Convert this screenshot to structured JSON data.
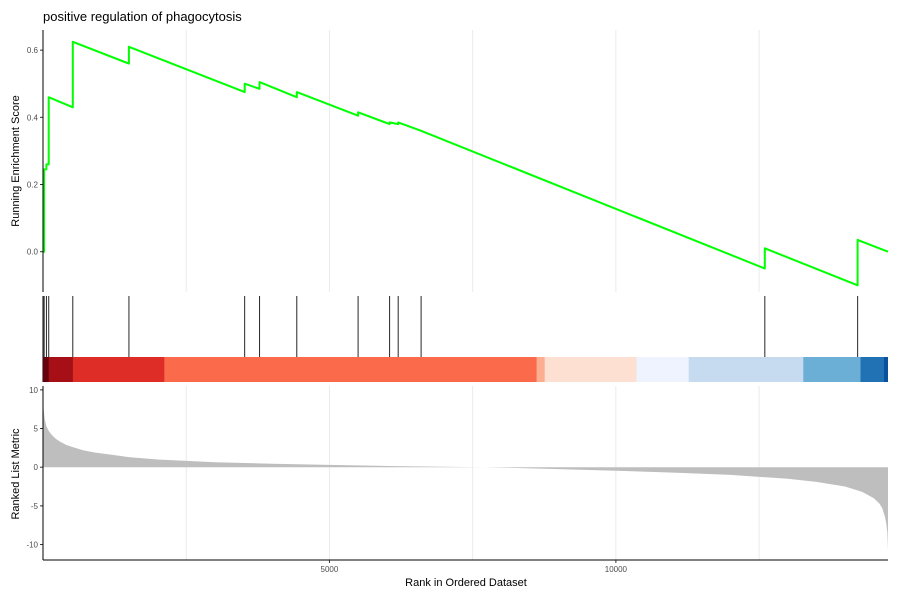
{
  "chart_data": {
    "type": "line",
    "title": "positive regulation of phagocytosis",
    "panels": {
      "running_score": {
        "ylabel": "Running Enrichment Score",
        "ylim": [
          -0.12,
          0.66
        ],
        "yticks": [
          0.0,
          0.2,
          0.4,
          0.6
        ],
        "ytick_labels": [
          "0.0",
          "0.2",
          "0.4",
          "0.6"
        ],
        "color": "#00ff00",
        "series": [
          {
            "x": [
              0,
              20,
              20,
              60,
              60,
              100,
              100,
              520,
              520,
              1500,
              1500,
              3520,
              3520,
              3780,
              3780,
              4430,
              4430,
              5500,
              5500,
              6050,
              6050,
              6200,
              6200,
              6600,
              6600,
              12600,
              12600,
              14220,
              14220,
              14750
            ],
            "y": [
              0.0,
              0.0,
              0.245,
              0.245,
              0.26,
              0.26,
              0.46,
              0.43,
              0.625,
              0.56,
              0.61,
              0.475,
              0.5,
              0.485,
              0.505,
              0.46,
              0.475,
              0.405,
              0.415,
              0.38,
              0.385,
              0.38,
              0.385,
              0.36,
              0.36,
              -0.05,
              0.01,
              -0.1,
              0.035,
              0.0
            ]
          }
        ]
      },
      "hits": {
        "positions": [
          20,
          60,
          100,
          520,
          1500,
          3520,
          3780,
          4430,
          5500,
          6050,
          6200,
          6600,
          12600,
          14220
        ]
      },
      "color_bar": {
        "segments": [
          {
            "from": 0,
            "to": 100,
            "color": "#67000d"
          },
          {
            "from": 100,
            "to": 520,
            "color": "#a50f15"
          },
          {
            "from": 520,
            "to": 2120,
            "color": "#de2d26"
          },
          {
            "from": 2120,
            "to": 8620,
            "color": "#fb6a4a"
          },
          {
            "from": 8620,
            "to": 8760,
            "color": "#fcae91"
          },
          {
            "from": 8760,
            "to": 10360,
            "color": "#fee0d2"
          },
          {
            "from": 10360,
            "to": 11270,
            "color": "#eff3ff"
          },
          {
            "from": 11270,
            "to": 13270,
            "color": "#c6dbef"
          },
          {
            "from": 13270,
            "to": 14270,
            "color": "#6baed6"
          },
          {
            "from": 14270,
            "to": 14680,
            "color": "#2171b5"
          },
          {
            "from": 14680,
            "to": 14750,
            "color": "#08519c"
          }
        ]
      },
      "ranked_metric": {
        "ylabel": "Ranked List Metric",
        "ylim": [
          -12,
          10.5
        ],
        "yticks": [
          10,
          5,
          0,
          -5,
          -10
        ],
        "ytick_labels": [
          "10",
          "5",
          "0",
          "-5",
          "-10"
        ],
        "fill_color": "#bebebe",
        "x": [
          0,
          10,
          30,
          60,
          100,
          150,
          220,
          300,
          400,
          520,
          700,
          900,
          1200,
          1500,
          2000,
          3000,
          4000,
          5000,
          6000,
          7000,
          7700,
          8000,
          9000,
          10000,
          11000,
          12000,
          13000,
          13500,
          14000,
          14300,
          14500,
          14600,
          14650,
          14700,
          14720,
          14740,
          14750
        ],
        "values": [
          10.5,
          7.5,
          6.2,
          5.3,
          4.7,
          4.2,
          3.7,
          3.3,
          2.9,
          2.6,
          2.2,
          1.9,
          1.6,
          1.3,
          1.0,
          0.65,
          0.45,
          0.3,
          0.15,
          0.05,
          0.0,
          -0.05,
          -0.25,
          -0.45,
          -0.7,
          -1.0,
          -1.5,
          -1.9,
          -2.5,
          -3.2,
          -4.0,
          -4.7,
          -5.3,
          -6.5,
          -7.3,
          -8.5,
          -10.8
        ]
      }
    },
    "x_axis": {
      "label": "Rank in Ordered Dataset",
      "xlim": [
        0,
        14750
      ],
      "ticks": [
        5000,
        10000
      ],
      "tick_labels": [
        "5000",
        "10000"
      ],
      "gridlines": [
        2500,
        5000,
        7500,
        10000,
        12500
      ]
    },
    "grid": true,
    "legend": "none"
  }
}
